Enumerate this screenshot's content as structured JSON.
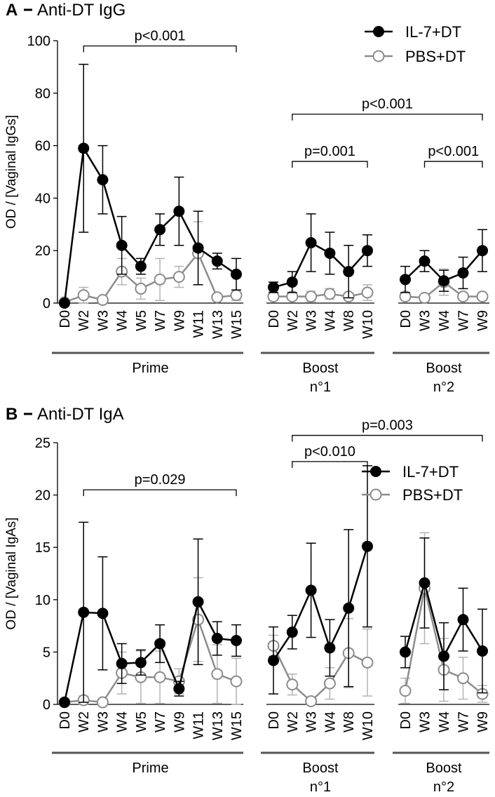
{
  "colors": {
    "il7": "#000000",
    "pbs": "#8c8c8c",
    "pbs_err": "#b3b3b3"
  },
  "chart_data": [
    {
      "type": "line",
      "panel_letter": "A",
      "title": "Anti-DT IgG",
      "ylabel": "OD / [Vaginal IgGs]",
      "ylim": [
        0,
        100
      ],
      "yticks": [
        0,
        20,
        40,
        60,
        80,
        100
      ],
      "legend": [
        "IL-7+DT",
        "PBS+DT"
      ],
      "legend_position": "top-right",
      "segments": [
        {
          "group": "Prime",
          "categories": [
            "D0",
            "W2",
            "W3",
            "W4",
            "W5",
            "W7",
            "W9",
            "W11",
            "W13",
            "W15"
          ],
          "series": [
            {
              "name": "IL-7+DT",
              "values": [
                0,
                59,
                47,
                22,
                14,
                28,
                35,
                21,
                16,
                11
              ],
              "err": [
                0,
                32,
                13,
                11,
                3,
                6,
                13,
                14,
                3,
                6
              ]
            },
            {
              "name": "PBS+DT",
              "values": [
                0.3,
                3,
                1.2,
                12,
                5.5,
                9,
                10,
                19,
                2.2,
                3
              ],
              "err": [
                0,
                3,
                0.5,
                5,
                4,
                8,
                4,
                12,
                1,
                2
              ]
            }
          ]
        },
        {
          "group": "Boost",
          "group_sub": "n°1",
          "categories": [
            "D0",
            "W2",
            "W3",
            "W4",
            "W8",
            "W10"
          ],
          "series": [
            {
              "name": "IL-7+DT",
              "values": [
                6,
                8,
                23,
                19,
                12,
                20
              ],
              "err": [
                2,
                4,
                11,
                8,
                10,
                6
              ]
            },
            {
              "name": "PBS+DT",
              "values": [
                2.5,
                2.5,
                2.5,
                3.5,
                2.5,
                4
              ],
              "err": [
                1,
                1,
                2,
                2,
                1,
                3
              ]
            }
          ]
        },
        {
          "group": "Boost",
          "group_sub": "n°2",
          "categories": [
            "D0",
            "W3",
            "W4",
            "W7",
            "W9"
          ],
          "series": [
            {
              "name": "IL-7+DT",
              "values": [
                9,
                16,
                8.5,
                11.5,
                20
              ],
              "err": [
                5,
                4,
                4,
                6,
                8
              ]
            },
            {
              "name": "PBS+DT",
              "values": [
                2.5,
                2,
                8,
                2.5,
                2.5
              ],
              "err": [
                1,
                1,
                5,
                1,
                1
              ]
            }
          ]
        }
      ],
      "annotations": [
        {
          "label": "p<0.001",
          "from": [
            0,
            1
          ],
          "to": [
            0,
            9
          ],
          "level": 98
        },
        {
          "label": "p<0.001",
          "from": [
            1,
            1
          ],
          "to": [
            2,
            4
          ],
          "level": 72
        },
        {
          "label": "p=0.001",
          "from": [
            1,
            1
          ],
          "to": [
            1,
            5
          ],
          "level": 54
        },
        {
          "label": "p<0.001",
          "from": [
            2,
            1
          ],
          "to": [
            2,
            4
          ],
          "level": 54
        }
      ]
    },
    {
      "type": "line",
      "panel_letter": "B",
      "title": "Anti-DT IgA",
      "ylabel": "OD / [Vaginal IgAs]",
      "ylim": [
        0,
        25
      ],
      "yticks": [
        0,
        5,
        10,
        15,
        20,
        25
      ],
      "legend": [
        "IL-7+DT",
        "PBS+DT"
      ],
      "legend_position": "top-right",
      "segments": [
        {
          "group": "Prime",
          "categories": [
            "D0",
            "W2",
            "W3",
            "W4",
            "W5",
            "W7",
            "W9",
            "W11",
            "W13",
            "W15"
          ],
          "series": [
            {
              "name": "IL-7+DT",
              "values": [
                0.2,
                8.8,
                8.7,
                3.9,
                4,
                5.8,
                1.5,
                9.8,
                6.3,
                6.1
              ],
              "err": [
                0,
                8.6,
                5.4,
                1.9,
                1.2,
                1.8,
                0.7,
                6,
                1.6,
                1.5
              ]
            },
            {
              "name": "PBS+DT",
              "values": [
                0.2,
                0.4,
                0.2,
                3,
                2.6,
                2.6,
                2.2,
                8.1,
                2.9,
                2.2
              ],
              "err": [
                0,
                0.4,
                0.2,
                2,
                2.5,
                2.5,
                1.2,
                4,
                2.8,
                2.2
              ]
            }
          ]
        },
        {
          "group": "Boost",
          "group_sub": "n°1",
          "categories": [
            "D0",
            "W2",
            "W3",
            "W4",
            "W8",
            "W10"
          ],
          "series": [
            {
              "name": "IL-7+DT",
              "values": [
                4.2,
                6.9,
                10.9,
                5.4,
                9.2,
                15.1
              ],
              "err": [
                3.2,
                1.6,
                4.5,
                2.7,
                7.5,
                7.7
              ]
            },
            {
              "name": "PBS+DT",
              "values": [
                5.6,
                1.9,
                0.3,
                2,
                4.9,
                4
              ],
              "err": [
                1,
                1,
                0.3,
                1.5,
                3.3,
                3.2
              ]
            }
          ]
        },
        {
          "group": "Boost",
          "group_sub": "n°2",
          "categories": [
            "D0",
            "W3",
            "W4",
            "W7",
            "W9"
          ],
          "series": [
            {
              "name": "IL-7+DT",
              "values": [
                5,
                11.6,
                4.6,
                8.1,
                5.1
              ],
              "err": [
                1.5,
                4.3,
                3.2,
                3,
                4
              ]
            },
            {
              "name": "PBS+DT",
              "values": [
                1.3,
                11.1,
                3.3,
                2.5,
                1
              ],
              "err": [
                1.2,
                5.3,
                3,
                2,
                0.8
              ]
            }
          ]
        }
      ],
      "annotations": [
        {
          "label": "p=0.029",
          "from": [
            0,
            1
          ],
          "to": [
            0,
            9
          ],
          "level": 20.5
        },
        {
          "label": "p<0.010",
          "from": [
            1,
            1
          ],
          "to": [
            1,
            5
          ],
          "level": 23.2
        },
        {
          "label": "p=0.003",
          "from": [
            1,
            1
          ],
          "to": [
            2,
            4
          ],
          "level": 25.7
        }
      ]
    }
  ]
}
